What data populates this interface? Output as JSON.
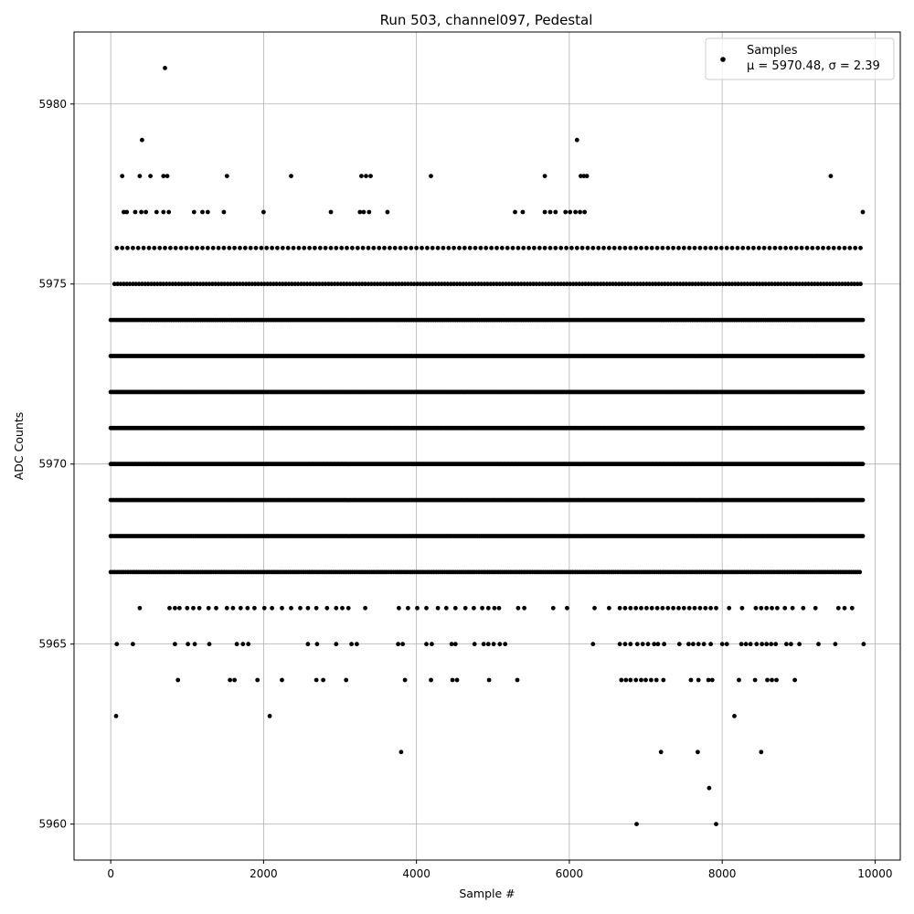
{
  "chart_data": {
    "type": "scatter",
    "title": "Run 503, channel097, Pedestal",
    "xlabel": "Sample #",
    "ylabel": "ADC Counts",
    "xlim": [
      -480,
      10330
    ],
    "ylim": [
      5959.0,
      5982.0
    ],
    "x_ticks": [
      0,
      2000,
      4000,
      6000,
      8000,
      10000
    ],
    "y_ticks": [
      5960,
      5965,
      5970,
      5975,
      5980
    ],
    "x_tick_labels": [
      "0",
      "2000",
      "4000",
      "6000",
      "8000",
      "10000"
    ],
    "y_tick_labels": [
      "5960",
      "5965",
      "5970",
      "5975",
      "5980"
    ],
    "grid": true,
    "legend": {
      "placement": "top-right",
      "line1": "Samples",
      "line2": "μ = 5970.48, σ = 2.39"
    },
    "series": [
      {
        "name": "Samples",
        "color": "#000000",
        "x_range": [
          0,
          9850
        ],
        "mean": 5970.48,
        "sigma": 2.39,
        "outliers": [
          {
            "x": 710,
            "y": 5981
          },
          {
            "x": 410,
            "y": 5979
          },
          {
            "x": 6100,
            "y": 5979
          },
          {
            "x": 70,
            "y": 5963
          },
          {
            "x": 2080,
            "y": 5963
          },
          {
            "x": 8160,
            "y": 5963
          },
          {
            "x": 3800,
            "y": 5962
          },
          {
            "x": 7200,
            "y": 5962
          },
          {
            "x": 7680,
            "y": 5962
          },
          {
            "x": 8510,
            "y": 5962
          },
          {
            "x": 7830,
            "y": 5961
          },
          {
            "x": 6880,
            "y": 5960
          },
          {
            "x": 7920,
            "y": 5960
          }
        ],
        "sparse_levels": [
          {
            "y": 5978,
            "x": [
              150,
              380,
              520,
              690,
              740,
              1520,
              2360,
              3280,
              3340,
              3400,
              4190,
              5680,
              6150,
              6190,
              6230,
              9420
            ]
          },
          {
            "y": 5977,
            "x": [
              170,
              210,
              320,
              400,
              460,
              600,
              690,
              760,
              1090,
              1200,
              1270,
              1480,
              2000,
              2880,
              3260,
              3310,
              3380,
              3620,
              5290,
              5390,
              5680,
              5750,
              5820,
              5950,
              6010,
              6080,
              6140,
              6200,
              9840
            ]
          },
          {
            "y": 5964,
            "x": [
              880,
              1560,
              1620,
              1920,
              2240,
              2690,
              2780,
              3080,
              3850,
              4190,
              4470,
              4530,
              4950,
              5320,
              6680,
              6740,
              6800,
              6870,
              6940,
              7000,
              7070,
              7140,
              7230,
              7590,
              7690,
              7820,
              7870,
              8220,
              8430,
              8590,
              8650,
              8710,
              8950
            ]
          },
          {
            "y": 5965,
            "x": [
              80,
              290,
              840,
              1010,
              1100,
              1290,
              1650,
              1730,
              1800,
              2580,
              2700,
              2950,
              3150,
              3220,
              3760,
              3820,
              4130,
              4200,
              4460,
              4510,
              4760,
              4880,
              4940,
              5010,
              5090,
              5160,
              6310,
              6660,
              6730,
              6800,
              6890,
              6960,
              7030,
              7110,
              7160,
              7240,
              7440,
              7560,
              7620,
              7690,
              7760,
              7850,
              8000,
              8060,
              8250,
              8310,
              8370,
              8450,
              8520,
              8580,
              8640,
              8700,
              8840,
              8900,
              9010,
              9260,
              9480,
              9850
            ]
          },
          {
            "y": 5966,
            "x": [
              380,
              770,
              840,
              900,
              1000,
              1080,
              1160,
              1280,
              1380,
              1520,
              1600,
              1700,
              1790,
              1880,
              2010,
              2110,
              2240,
              2360,
              2480,
              2580,
              2690,
              2830,
              2950,
              3030,
              3110,
              3330,
              3770,
              3890,
              4010,
              4130,
              4280,
              4390,
              4510,
              4640,
              4750,
              4860,
              4940,
              5020,
              5080,
              5330,
              5410,
              5790,
              5970,
              6330,
              6520,
              6660,
              6730,
              6800,
              6870,
              6940,
              7010,
              7080,
              7150,
              7220,
              7290,
              7360,
              7430,
              7500,
              7570,
              7640,
              7710,
              7780,
              7850,
              7920,
              8090,
              8260,
              8440,
              8510,
              8580,
              8650,
              8720,
              8820,
              8920,
              9060,
              9220,
              9520,
              9600,
              9700
            ]
          }
        ],
        "dense_levels": [
          {
            "y": 5967,
            "x_from": 0,
            "x_to": 9800,
            "step": 28
          },
          {
            "y": 5968,
            "x_from": 0,
            "x_to": 9850,
            "step": 24
          },
          {
            "y": 5969,
            "x_from": 0,
            "x_to": 9850,
            "step": 20
          },
          {
            "y": 5970,
            "x_from": 0,
            "x_to": 9850,
            "step": 16
          },
          {
            "y": 5971,
            "x_from": 0,
            "x_to": 9850,
            "step": 16
          },
          {
            "y": 5972,
            "x_from": 0,
            "x_to": 9850,
            "step": 16
          },
          {
            "y": 5973,
            "x_from": 0,
            "x_to": 9850,
            "step": 20
          },
          {
            "y": 5974,
            "x_from": 0,
            "x_to": 9850,
            "step": 24
          },
          {
            "y": 5975,
            "x_from": 50,
            "x_to": 9820,
            "step": 40
          },
          {
            "y": 5976,
            "x_from": 80,
            "x_to": 9810,
            "step": 70
          }
        ]
      }
    ]
  }
}
